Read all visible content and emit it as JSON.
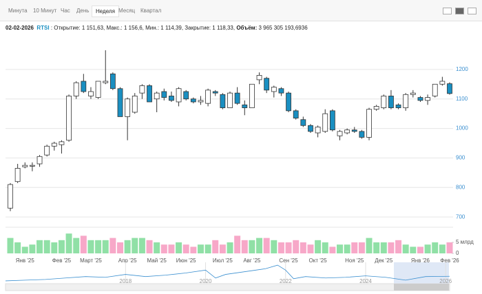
{
  "header": {
    "tabs": [
      "Минута",
      "10 Минут",
      "Час",
      "День",
      "Неделя",
      "Месяц",
      "Квартал"
    ],
    "active_tab": 4,
    "date": "02-02-2026",
    "symbol": "RTSI",
    "ohlc_text": ": Открытие: 1 151,63, Макс.: 1 156,6, Мин.: 1 114,39, Закрытие: 1 118,33,",
    "volume_label": "Объём:",
    "volume_text": "3 965 305 193,6936"
  },
  "chart_data": [
    {
      "type": "candlestick",
      "categories": [
        null,
        null,
        "Янв '25",
        null,
        null,
        null,
        null,
        "Фев '25",
        null,
        null,
        null,
        "Март '25",
        null,
        null,
        null,
        null,
        "Апр '25",
        null,
        null,
        null,
        "Май '25",
        null,
        null,
        null,
        "Июн '25",
        null,
        null,
        null,
        null,
        "Июл '25",
        null,
        null,
        null,
        "Авг '25",
        null,
        null,
        null,
        null,
        "Сен '25",
        null,
        null,
        null,
        "Окт '25",
        null,
        null,
        null,
        null,
        "Ноя '25",
        null,
        null,
        null,
        "Дек '25",
        null,
        null,
        null,
        null,
        "Янв '26",
        null,
        null,
        null,
        "Фев '26"
      ],
      "open": [
        730,
        820,
        870,
        872,
        880,
        910,
        940,
        945,
        960,
        1110,
        1160,
        1110,
        1105,
        1155,
        1185,
        1135,
        1040,
        1055,
        1120,
        1145,
        1100,
        1125,
        1110,
        1090,
        1125,
        1100,
        1090,
        1085,
        1125,
        1115,
        1070,
        1120,
        1080,
        1070,
        1165,
        1170,
        1125,
        1135,
        1120,
        1060,
        1030,
        1010,
        985,
        990,
        1060,
        975,
        985,
        995,
        990,
        970,
        1065,
        1070,
        1110,
        1080,
        1070,
        1115,
        1105,
        1095,
        1110,
        1150,
        1151.63
      ],
      "high": [
        815,
        880,
        885,
        885,
        910,
        945,
        955,
        960,
        1115,
        1160,
        1185,
        1140,
        1160,
        1265,
        1190,
        1140,
        1105,
        1120,
        1150,
        1150,
        1125,
        1135,
        1125,
        1140,
        1130,
        1105,
        1110,
        1135,
        1130,
        1120,
        1125,
        1140,
        1095,
        1150,
        1190,
        1175,
        1145,
        1140,
        1125,
        1065,
        1040,
        1015,
        1010,
        1065,
        1065,
        995,
        1000,
        1005,
        995,
        1070,
        1080,
        1115,
        1130,
        1085,
        1120,
        1130,
        1110,
        1115,
        1150,
        1175,
        1156.6
      ],
      "low": [
        720,
        815,
        865,
        855,
        870,
        905,
        925,
        915,
        955,
        1100,
        1120,
        1100,
        1100,
        1150,
        1130,
        1040,
        960,
        1050,
        1100,
        1090,
        1055,
        1095,
        1090,
        1075,
        1095,
        1085,
        1080,
        1075,
        1110,
        1065,
        1070,
        1080,
        1045,
        1070,
        1150,
        1120,
        1105,
        1110,
        1055,
        1030,
        1005,
        985,
        970,
        985,
        990,
        960,
        980,
        985,
        965,
        960,
        1060,
        1065,
        1065,
        1065,
        1060,
        1105,
        1090,
        1080,
        1105,
        1145,
        1114.39
      ],
      "close": [
        810,
        865,
        875,
        875,
        905,
        940,
        950,
        955,
        1110,
        1155,
        1125,
        1125,
        1160,
        1160,
        1135,
        1040,
        1100,
        1110,
        1145,
        1090,
        1120,
        1105,
        1095,
        1135,
        1100,
        1090,
        1095,
        1130,
        1120,
        1070,
        1120,
        1085,
        1070,
        1150,
        1180,
        1130,
        1140,
        1120,
        1060,
        1035,
        1010,
        990,
        1005,
        1050,
        995,
        990,
        995,
        990,
        970,
        1065,
        1075,
        1110,
        1070,
        1070,
        1115,
        1120,
        1095,
        1105,
        1150,
        1160,
        1118.33
      ],
      "up_color": "#ffffff",
      "down_color": "#1a8fc1",
      "outline_color": "#333333",
      "ylim": [
        670,
        1300
      ],
      "yticks": [
        700,
        800,
        900,
        1000,
        1100,
        1200
      ],
      "grid": true
    },
    {
      "type": "bar",
      "values": [
        7000000000,
        5000000000,
        3000000000,
        4000000000,
        6000000000,
        6000000000,
        5000000000,
        6000000000,
        9000000000,
        7000000000,
        8000000000,
        6000000000,
        6000000000,
        6000000000,
        7000000000,
        5000000000,
        6000000000,
        7000000000,
        7000000000,
        6000000000,
        5000000000,
        4000000000,
        4000000000,
        5000000000,
        4000000000,
        3000000000,
        4000000000,
        4000000000,
        6000000000,
        4000000000,
        5000000000,
        8000000000,
        6000000000,
        6000000000,
        7000000000,
        7000000000,
        6000000000,
        5000000000,
        5000000000,
        6000000000,
        5000000000,
        4000000000,
        6000000000,
        5000000000,
        3000000000,
        4000000000,
        4000000000,
        5000000000,
        5000000000,
        7000000000,
        5000000000,
        5000000000,
        5000000000,
        6000000000,
        4000000000,
        3000000000,
        3000000000,
        4000000000,
        5000000000,
        4000000000,
        5000000000
      ],
      "up_color": "#90e0a6",
      "down_color": "#f7a8c8",
      "ylim": [
        0,
        11250000000
      ],
      "yticks": [
        0,
        {
          "value": 5000000000,
          "label": "5 млрд"
        }
      ]
    },
    {
      "type": "line",
      "x": [
        2015,
        2015.5,
        2016,
        2016.5,
        2017,
        2017.5,
        2018,
        2018.5,
        2019,
        2019.5,
        2020,
        2020.25,
        2020.5,
        2021,
        2021.5,
        2021.8,
        2022,
        2022.2,
        2022.5,
        2023,
        2023.5,
        2024,
        2024.5,
        2025,
        2025.5,
        2026.1
      ],
      "values": [
        800,
        850,
        900,
        1000,
        1100,
        1050,
        1250,
        1100,
        1200,
        1350,
        1550,
        1000,
        1250,
        1450,
        1650,
        1900,
        1550,
        950,
        1100,
        1000,
        1050,
        1150,
        1050,
        850,
        1100,
        1120
      ],
      "color": "#3a8fd0",
      "xlim": [
        2015,
        2026.1
      ],
      "xticks": [
        2018,
        2020,
        2022,
        2024,
        2026
      ],
      "ylim": [
        700,
        2000
      ]
    }
  ]
}
